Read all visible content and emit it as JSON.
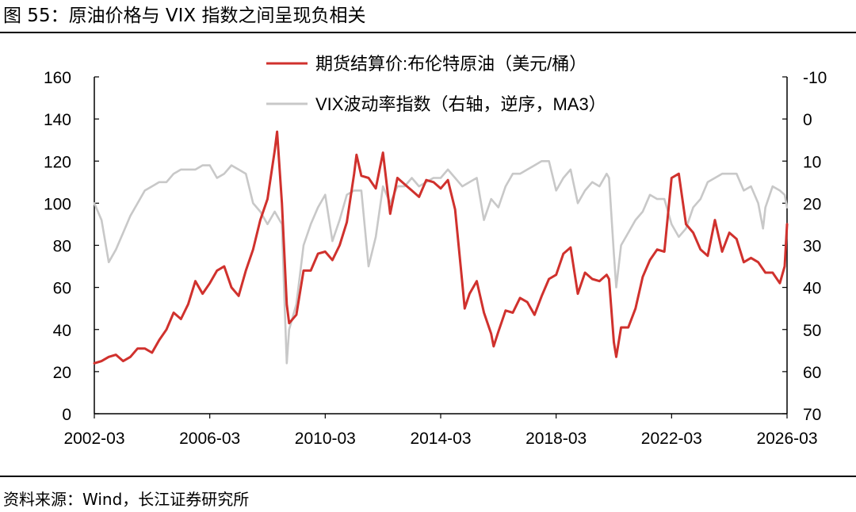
{
  "figure": {
    "title": "图 55：原油价格与 VIX 指数之间呈现负相关",
    "source": "资料来源：Wind，长江证券研究所"
  },
  "chart_data": {
    "type": "line",
    "x_ticks": [
      "2002-03",
      "2006-03",
      "2010-03",
      "2014-03",
      "2018-03",
      "2022-03",
      "2026-03"
    ],
    "x_range": [
      "2002-03",
      "2026-03"
    ],
    "y_left": {
      "ticks": [
        "0",
        "20",
        "40",
        "60",
        "80",
        "100",
        "120",
        "140",
        "160"
      ],
      "range": [
        0,
        160
      ]
    },
    "y_right": {
      "ticks": [
        "-10",
        "0",
        "10",
        "20",
        "30",
        "40",
        "50",
        "60",
        "70"
      ],
      "range": [
        -10,
        70
      ],
      "inverted": true
    },
    "grid": false,
    "legend_position": "top-center",
    "series": [
      {
        "name": "期货结算价:布伦特原油（美元/桶）",
        "axis": "left",
        "color": "#d0312d",
        "points": [
          [
            "2002-03",
            24
          ],
          [
            "2002-06",
            25
          ],
          [
            "2002-09",
            27
          ],
          [
            "2002-12",
            28
          ],
          [
            "2003-03",
            25
          ],
          [
            "2003-06",
            27
          ],
          [
            "2003-09",
            31
          ],
          [
            "2003-12",
            31
          ],
          [
            "2004-03",
            29
          ],
          [
            "2004-06",
            35
          ],
          [
            "2004-09",
            40
          ],
          [
            "2004-12",
            48
          ],
          [
            "2005-03",
            45
          ],
          [
            "2005-06",
            52
          ],
          [
            "2005-09",
            63
          ],
          [
            "2005-12",
            57
          ],
          [
            "2006-03",
            62
          ],
          [
            "2006-06",
            68
          ],
          [
            "2006-09",
            70
          ],
          [
            "2006-12",
            60
          ],
          [
            "2007-03",
            56
          ],
          [
            "2007-06",
            68
          ],
          [
            "2007-09",
            78
          ],
          [
            "2007-12",
            92
          ],
          [
            "2008-03",
            102
          ],
          [
            "2008-06",
            125
          ],
          [
            "2008-07",
            134
          ],
          [
            "2008-09",
            100
          ],
          [
            "2008-11",
            52
          ],
          [
            "2008-12",
            43
          ],
          [
            "2009-03",
            47
          ],
          [
            "2009-06",
            68
          ],
          [
            "2009-09",
            68
          ],
          [
            "2009-12",
            76
          ],
          [
            "2010-03",
            77
          ],
          [
            "2010-06",
            73
          ],
          [
            "2010-09",
            80
          ],
          [
            "2010-12",
            91
          ],
          [
            "2011-03",
            114
          ],
          [
            "2011-04",
            123
          ],
          [
            "2011-06",
            113
          ],
          [
            "2011-09",
            112
          ],
          [
            "2011-12",
            107
          ],
          [
            "2012-03",
            124
          ],
          [
            "2012-06",
            95
          ],
          [
            "2012-09",
            112
          ],
          [
            "2012-12",
            109
          ],
          [
            "2013-03",
            106
          ],
          [
            "2013-06",
            103
          ],
          [
            "2013-09",
            111
          ],
          [
            "2013-12",
            110
          ],
          [
            "2014-03",
            107
          ],
          [
            "2014-06",
            111
          ],
          [
            "2014-09",
            97
          ],
          [
            "2014-12",
            62
          ],
          [
            "2015-01",
            50
          ],
          [
            "2015-03",
            57
          ],
          [
            "2015-06",
            63
          ],
          [
            "2015-09",
            48
          ],
          [
            "2015-12",
            38
          ],
          [
            "2016-01",
            32
          ],
          [
            "2016-03",
            39
          ],
          [
            "2016-06",
            49
          ],
          [
            "2016-09",
            48
          ],
          [
            "2016-12",
            55
          ],
          [
            "2017-03",
            53
          ],
          [
            "2017-06",
            47
          ],
          [
            "2017-09",
            56
          ],
          [
            "2017-12",
            64
          ],
          [
            "2018-03",
            66
          ],
          [
            "2018-06",
            76
          ],
          [
            "2018-09",
            79
          ],
          [
            "2018-12",
            57
          ],
          [
            "2019-03",
            67
          ],
          [
            "2019-06",
            64
          ],
          [
            "2019-09",
            63
          ],
          [
            "2019-12",
            66
          ],
          [
            "2020-01",
            64
          ],
          [
            "2020-03",
            34
          ],
          [
            "2020-04",
            27
          ],
          [
            "2020-06",
            41
          ],
          [
            "2020-09",
            41
          ],
          [
            "2020-12",
            50
          ],
          [
            "2021-03",
            65
          ],
          [
            "2021-06",
            73
          ],
          [
            "2021-09",
            78
          ],
          [
            "2021-12",
            77
          ],
          [
            "2022-03",
            112
          ],
          [
            "2022-06",
            114
          ],
          [
            "2022-09",
            90
          ],
          [
            "2022-12",
            86
          ],
          [
            "2023-03",
            78
          ],
          [
            "2023-06",
            75
          ],
          [
            "2023-09",
            92
          ],
          [
            "2023-12",
            77
          ],
          [
            "2024-03",
            86
          ],
          [
            "2024-06",
            83
          ],
          [
            "2024-09",
            72
          ],
          [
            "2024-12",
            74
          ],
          [
            "2025-03",
            72
          ],
          [
            "2025-06",
            67
          ],
          [
            "2025-09",
            67
          ],
          [
            "2025-12",
            62
          ],
          [
            "2026-02",
            70
          ],
          [
            "2026-03",
            90
          ]
        ]
      },
      {
        "name": "VIX波动率指数（右轴，逆序，MA3）",
        "axis": "right",
        "color": "#c8c8c8",
        "points": [
          [
            "2002-03",
            20
          ],
          [
            "2002-06",
            24
          ],
          [
            "2002-09",
            34
          ],
          [
            "2002-12",
            31
          ],
          [
            "2003-03",
            27
          ],
          [
            "2003-06",
            23
          ],
          [
            "2003-09",
            20
          ],
          [
            "2003-12",
            17
          ],
          [
            "2004-03",
            16
          ],
          [
            "2004-06",
            15
          ],
          [
            "2004-09",
            15
          ],
          [
            "2004-12",
            13
          ],
          [
            "2005-03",
            12
          ],
          [
            "2005-06",
            12
          ],
          [
            "2005-09",
            12
          ],
          [
            "2005-12",
            11
          ],
          [
            "2006-03",
            11
          ],
          [
            "2006-06",
            14
          ],
          [
            "2006-09",
            13
          ],
          [
            "2006-12",
            11
          ],
          [
            "2007-03",
            12
          ],
          [
            "2007-06",
            13
          ],
          [
            "2007-09",
            20
          ],
          [
            "2007-12",
            22
          ],
          [
            "2008-03",
            25
          ],
          [
            "2008-06",
            22
          ],
          [
            "2008-09",
            25
          ],
          [
            "2008-10",
            42
          ],
          [
            "2008-11",
            58
          ],
          [
            "2008-12",
            50
          ],
          [
            "2009-03",
            44
          ],
          [
            "2009-06",
            30
          ],
          [
            "2009-09",
            25
          ],
          [
            "2009-12",
            21
          ],
          [
            "2010-03",
            18
          ],
          [
            "2010-06",
            29
          ],
          [
            "2010-09",
            24
          ],
          [
            "2010-12",
            18
          ],
          [
            "2011-03",
            17
          ],
          [
            "2011-06",
            17
          ],
          [
            "2011-09",
            35
          ],
          [
            "2011-12",
            28
          ],
          [
            "2012-03",
            16
          ],
          [
            "2012-06",
            20
          ],
          [
            "2012-09",
            16
          ],
          [
            "2012-12",
            16
          ],
          [
            "2013-03",
            14
          ],
          [
            "2013-06",
            16
          ],
          [
            "2013-09",
            15
          ],
          [
            "2013-12",
            14
          ],
          [
            "2014-03",
            14
          ],
          [
            "2014-06",
            12
          ],
          [
            "2014-09",
            14
          ],
          [
            "2014-12",
            16
          ],
          [
            "2015-03",
            15
          ],
          [
            "2015-06",
            14
          ],
          [
            "2015-09",
            24
          ],
          [
            "2015-12",
            19
          ],
          [
            "2016-03",
            21
          ],
          [
            "2016-06",
            16
          ],
          [
            "2016-09",
            13
          ],
          [
            "2016-12",
            13
          ],
          [
            "2017-03",
            12
          ],
          [
            "2017-06",
            11
          ],
          [
            "2017-09",
            10
          ],
          [
            "2017-12",
            10
          ],
          [
            "2018-03",
            17
          ],
          [
            "2018-06",
            14
          ],
          [
            "2018-09",
            12
          ],
          [
            "2018-12",
            20
          ],
          [
            "2019-03",
            17
          ],
          [
            "2019-06",
            15
          ],
          [
            "2019-09",
            16
          ],
          [
            "2019-12",
            13
          ],
          [
            "2020-01",
            14
          ],
          [
            "2020-03",
            32
          ],
          [
            "2020-04",
            40
          ],
          [
            "2020-06",
            30
          ],
          [
            "2020-09",
            27
          ],
          [
            "2020-12",
            24
          ],
          [
            "2021-03",
            22
          ],
          [
            "2021-06",
            18
          ],
          [
            "2021-09",
            19
          ],
          [
            "2021-12",
            19
          ],
          [
            "2022-03",
            25
          ],
          [
            "2022-06",
            28
          ],
          [
            "2022-09",
            26
          ],
          [
            "2022-12",
            21
          ],
          [
            "2023-03",
            19
          ],
          [
            "2023-06",
            15
          ],
          [
            "2023-09",
            14
          ],
          [
            "2023-12",
            13
          ],
          [
            "2024-03",
            13
          ],
          [
            "2024-06",
            13
          ],
          [
            "2024-09",
            17
          ],
          [
            "2024-12",
            16
          ],
          [
            "2025-03",
            20
          ],
          [
            "2025-05",
            26
          ],
          [
            "2025-06",
            21
          ],
          [
            "2025-09",
            16
          ],
          [
            "2025-12",
            17
          ],
          [
            "2026-02",
            18
          ],
          [
            "2026-03",
            21
          ]
        ]
      }
    ]
  }
}
